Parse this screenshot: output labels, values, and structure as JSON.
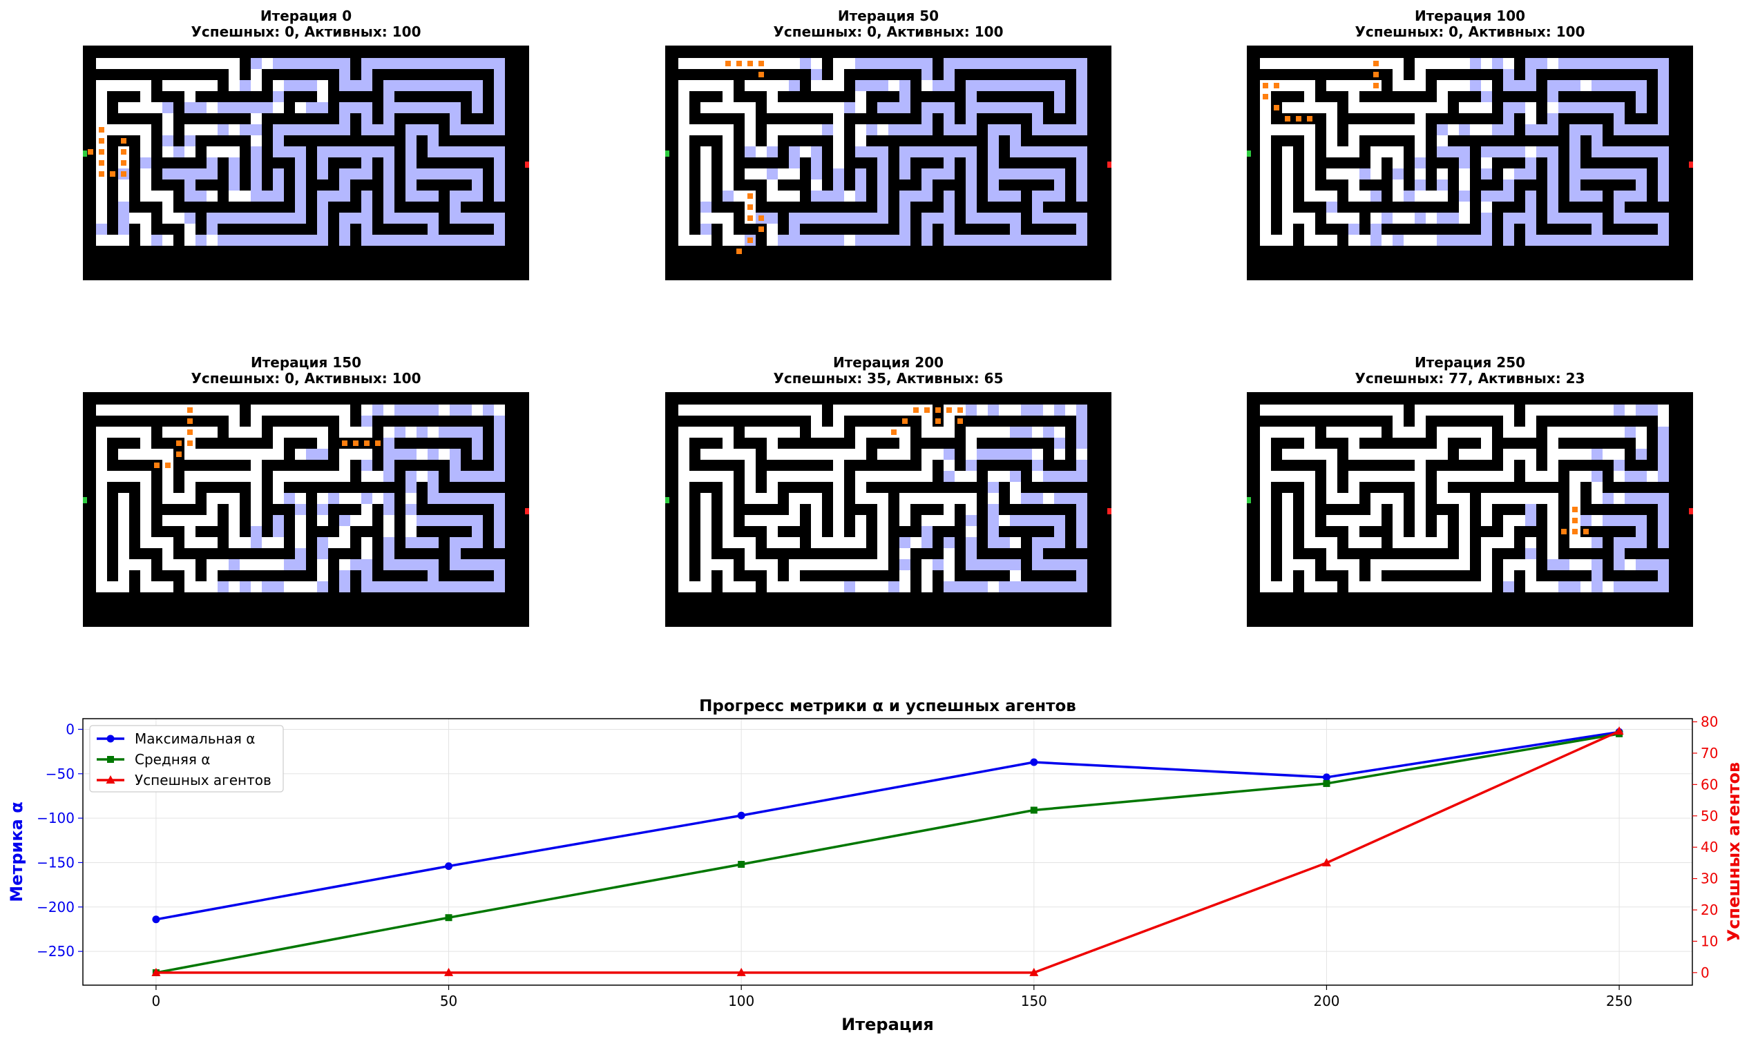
{
  "panels": [
    {
      "title": "Итерация 0",
      "subtitle": "Успешных: 0, Активных: 100"
    },
    {
      "title": "Итерация 50",
      "subtitle": "Успешных: 0, Активных: 100"
    },
    {
      "title": "Итерация 100",
      "subtitle": "Успешных: 0, Активных: 100"
    },
    {
      "title": "Итерация 150",
      "subtitle": "Успешных: 0, Активных: 100"
    },
    {
      "title": "Итерация 200",
      "subtitle": "Успешных: 35, Активных: 65"
    },
    {
      "title": "Итерация 250",
      "subtitle": "Успешных: 77, Активных: 23"
    }
  ],
  "colors": {
    "wall": "#000000",
    "path": "#ffffff",
    "visited": "#b4b8ff",
    "agent": "#ff7f0e",
    "start": "#2ecc40",
    "exit": "#ff2020"
  },
  "chart_data": {
    "type": "line",
    "title": "Прогресс метрики α и успешных агентов",
    "xlabel": "Итерация",
    "ylabel_left": "Метрика α",
    "ylabel_right": "Успешных агентов",
    "x": [
      0,
      50,
      100,
      150,
      200,
      250
    ],
    "xlim": [
      -12.5,
      262.5
    ],
    "xticks": [
      "0",
      "50",
      "100",
      "150",
      "200",
      "250"
    ],
    "ylim_left": [
      -288,
      12
    ],
    "yticks_left": [
      "0",
      "−50",
      "−100",
      "−150",
      "−200",
      "−250"
    ],
    "ylim_right": [
      -4,
      81
    ],
    "yticks_right": [
      "0",
      "10",
      "20",
      "30",
      "40",
      "50",
      "60",
      "70",
      "80"
    ],
    "grid": true,
    "legend_position": "top-left",
    "series": [
      {
        "name": "Максимальная α",
        "axis": "left",
        "color": "#0000ee",
        "marker": "circle",
        "values": [
          -214,
          -154,
          -97,
          -37,
          -54,
          -3
        ]
      },
      {
        "name": "Средняя α",
        "axis": "left",
        "color": "#007700",
        "marker": "square",
        "values": [
          -274,
          -212,
          -152,
          -91,
          -61,
          -5
        ]
      },
      {
        "name": "Успешных агентов",
        "axis": "right",
        "color": "#ee0000",
        "marker": "triangle",
        "values": [
          0,
          0,
          0,
          0,
          35,
          77
        ]
      }
    ]
  }
}
